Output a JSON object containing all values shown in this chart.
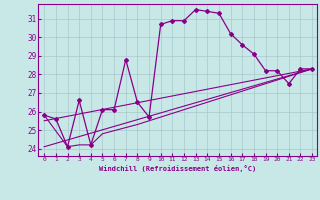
{
  "xlabel": "Windchill (Refroidissement éolien,°C)",
  "bg_color": "#c8e8e8",
  "grid_color": "#a8c8cc",
  "line_color": "#880088",
  "xlim": [
    -0.5,
    23.4
  ],
  "ylim": [
    23.6,
    31.8
  ],
  "yticks": [
    24,
    25,
    26,
    27,
    28,
    29,
    30,
    31
  ],
  "xticks": [
    0,
    1,
    2,
    3,
    4,
    5,
    6,
    7,
    8,
    9,
    10,
    11,
    12,
    13,
    14,
    15,
    16,
    17,
    18,
    19,
    20,
    21,
    22,
    23
  ],
  "line1_x": [
    0,
    1,
    2,
    3,
    4,
    5,
    6,
    7,
    8,
    9,
    10,
    11,
    12,
    13,
    14,
    15,
    16,
    17,
    18,
    19,
    20,
    21,
    22,
    23
  ],
  "line1_y": [
    25.8,
    25.6,
    24.1,
    26.6,
    24.2,
    26.1,
    26.1,
    28.8,
    26.5,
    25.7,
    30.7,
    30.9,
    30.9,
    31.5,
    31.4,
    31.3,
    30.2,
    29.6,
    29.1,
    28.2,
    28.2,
    27.5,
    28.3,
    28.3
  ],
  "trend1_x": [
    0,
    23
  ],
  "trend1_y": [
    24.1,
    28.3
  ],
  "trend2_x": [
    0,
    23
  ],
  "trend2_y": [
    25.5,
    28.3
  ],
  "trend3_x": [
    0,
    2,
    3,
    4,
    5,
    8,
    23
  ],
  "trend3_y": [
    25.8,
    24.1,
    24.2,
    24.2,
    24.8,
    25.3,
    28.3
  ]
}
